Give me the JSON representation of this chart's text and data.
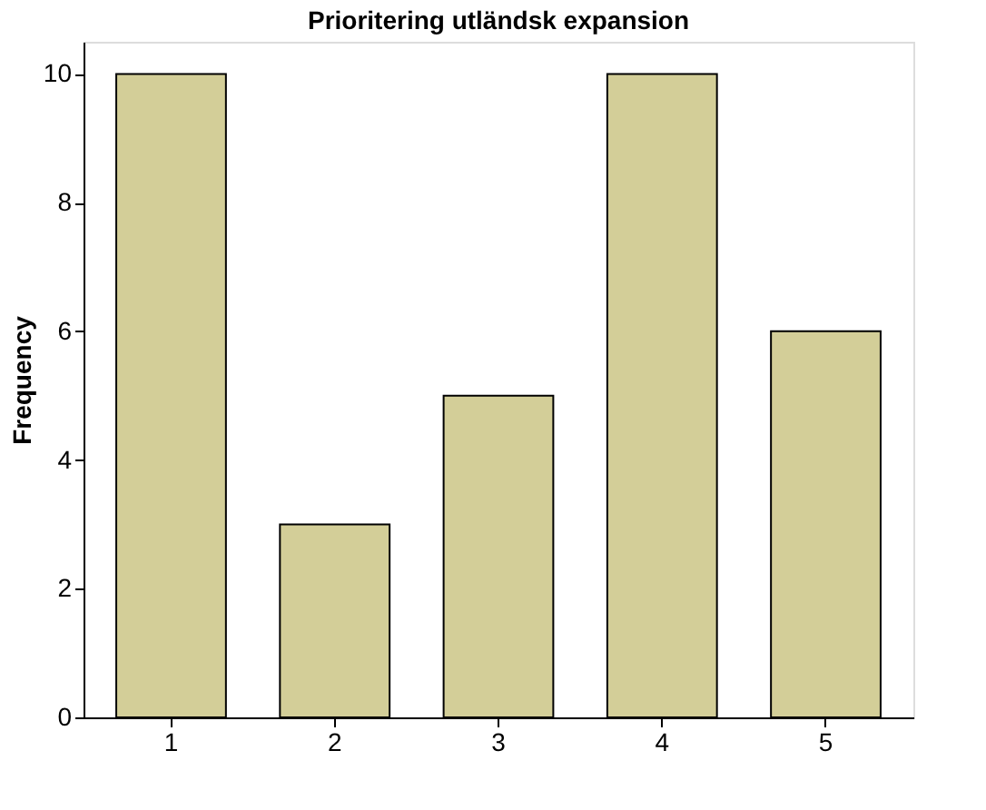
{
  "chart_data": {
    "type": "bar",
    "title": "Prioritering utländsk expansion",
    "ylabel": "Frequency",
    "categories": [
      "1",
      "2",
      "3",
      "4",
      "5"
    ],
    "values": [
      10,
      3,
      5,
      10,
      6
    ],
    "color": "#d3ce98",
    "ylim": [
      0,
      10.5
    ],
    "yticks": [
      0,
      2,
      4,
      6,
      8,
      10
    ],
    "grid": false
  }
}
